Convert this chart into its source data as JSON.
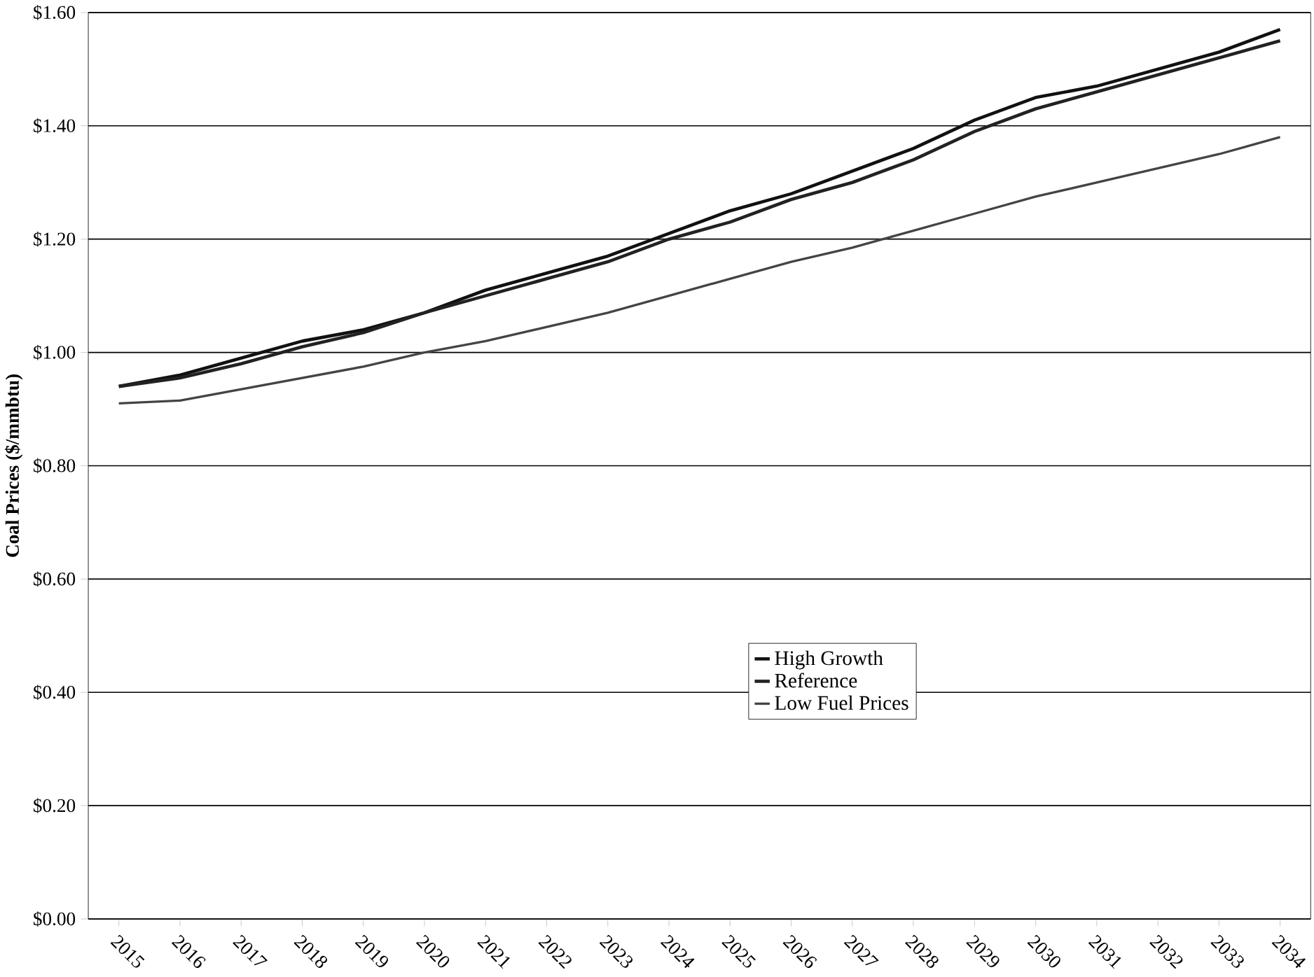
{
  "chart_data": {
    "type": "line",
    "ylabel": "Coal Prices ($/mmbtu)",
    "categories": [
      "2015",
      "2016",
      "2017",
      "2018",
      "2019",
      "2020",
      "2021",
      "2022",
      "2023",
      "2024",
      "2025",
      "2026",
      "2027",
      "2028",
      "2029",
      "2030",
      "2031",
      "2032",
      "2033",
      "2034"
    ],
    "series": [
      {
        "name": "High Growth",
        "color": "#111111",
        "values": [
          0.94,
          0.96,
          0.99,
          1.02,
          1.04,
          1.07,
          1.11,
          1.14,
          1.17,
          1.21,
          1.25,
          1.28,
          1.32,
          1.36,
          1.41,
          1.45,
          1.47,
          1.5,
          1.53,
          1.57
        ]
      },
      {
        "name": "Reference",
        "color": "#222222",
        "values": [
          0.94,
          0.955,
          0.98,
          1.01,
          1.035,
          1.07,
          1.1,
          1.13,
          1.16,
          1.2,
          1.23,
          1.27,
          1.3,
          1.34,
          1.39,
          1.43,
          1.46,
          1.49,
          1.52,
          1.55
        ]
      },
      {
        "name": "Low Fuel Prices",
        "color": "#444444",
        "values": [
          0.91,
          0.915,
          0.935,
          0.955,
          0.975,
          1.0,
          1.02,
          1.045,
          1.07,
          1.1,
          1.13,
          1.16,
          1.185,
          1.215,
          1.245,
          1.275,
          1.3,
          1.325,
          1.35,
          1.38
        ]
      }
    ],
    "ylim": [
      0,
      1.6
    ],
    "yticks": [
      {
        "value": 0,
        "label": "$0.00"
      },
      {
        "value": 0.2,
        "label": "$0.20"
      },
      {
        "value": 0.4,
        "label": "$0.40"
      },
      {
        "value": 0.6,
        "label": "$0.60"
      },
      {
        "value": 0.8,
        "label": "$0.80"
      },
      {
        "value": 1.0,
        "label": "$1.00"
      },
      {
        "value": 1.2,
        "label": "$1.20"
      },
      {
        "value": 1.4,
        "label": "$1.40"
      },
      {
        "value": 1.6,
        "label": "$1.60"
      }
    ],
    "grid": "y",
    "legend": "bottom right",
    "marker": "none",
    "line_style": "solid"
  }
}
